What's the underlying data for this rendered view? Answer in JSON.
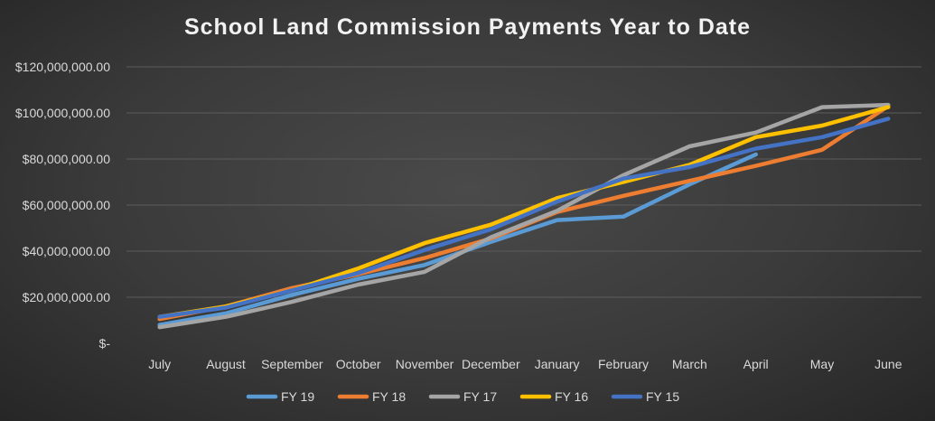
{
  "chart_data": {
    "type": "line",
    "title": "School Land Commission Payments Year to Date",
    "categories": [
      "July",
      "August",
      "September",
      "October",
      "November",
      "December",
      "January",
      "February",
      "March",
      "April",
      "May",
      "June"
    ],
    "y_tick_labels": [
      "$-",
      "$20,000,000.00",
      "$40,000,000.00",
      "$60,000,000.00",
      "$80,000,000.00",
      "$100,000,000.00",
      "$120,000,000.00"
    ],
    "ylim": [
      0,
      120000000
    ],
    "ytick_step": 20000000,
    "grid": true,
    "legend_position": "bottom",
    "series": [
      {
        "name": "FY 19",
        "color": "#5b9bd5",
        "values": [
          8000000,
          13000000,
          21000000,
          28000000,
          34000000,
          44000000,
          53500000,
          55000000,
          69000000,
          82000000,
          null,
          null
        ]
      },
      {
        "name": "FY 18",
        "color": "#ed7d31",
        "values": [
          10500000,
          16000000,
          24000000,
          30000000,
          37000000,
          45500000,
          57000000,
          64000000,
          70500000,
          77000000,
          84000000,
          103000000
        ]
      },
      {
        "name": "FY 17",
        "color": "#a5a5a5",
        "values": [
          7000000,
          11500000,
          18000000,
          25500000,
          31000000,
          46000000,
          57500000,
          73000000,
          85500000,
          91500000,
          102500000,
          103500000
        ]
      },
      {
        "name": "FY 16",
        "color": "#ffc000",
        "values": [
          11500000,
          16000000,
          23000000,
          32500000,
          43500000,
          51500000,
          63000000,
          70000000,
          77500000,
          89500000,
          94500000,
          102500000
        ]
      },
      {
        "name": "FY 15",
        "color": "#4472c4",
        "values": [
          11500000,
          15500000,
          23000000,
          30500000,
          40500000,
          49500000,
          61500000,
          71500000,
          76500000,
          84500000,
          89500000,
          97500000
        ]
      }
    ]
  }
}
